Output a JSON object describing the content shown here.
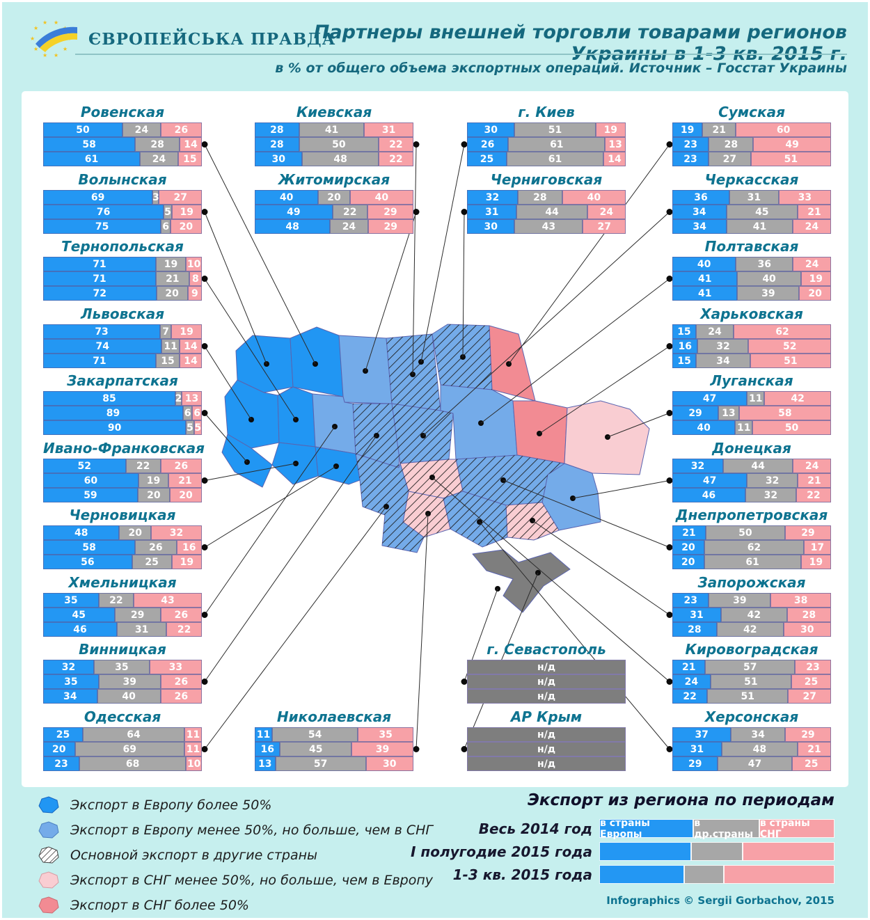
{
  "header": {
    "brand": "ЄВРОПЕЙСЬКА ПРАВДА",
    "title": "Партнеры внешней торговли товарами регионов Украины в 1-3 кв. 2015 г.",
    "subtitle": "в % от общего объема экспортных операций. Источник – Госстат Украины"
  },
  "na_label": "н/д",
  "colors": {
    "bar_europe": "#2397f3",
    "bar_other": "#a7a7a7",
    "bar_cis": "#f7a1a7",
    "bar_na": "#7e7e7e",
    "map_dark_blue": "#2196f3",
    "map_light_blue": "#74abe9",
    "map_pink": "#f28b93",
    "map_light_pink": "#f9cdd2",
    "map_gray": "#7e7e7e",
    "title_teal": "#0e7390",
    "header_teal": "#15687e",
    "background": "#c6efee"
  },
  "chart_data": {
    "type": "bar",
    "title": "Партнеры внешней торговли товарами регионов Украины в 1-3 кв. 2015 г.",
    "unit": "% от общего объема экспортных операций",
    "periods": [
      "Весь 2014 год",
      "I полугодие 2015 года",
      "1-3 кв. 2015 года"
    ],
    "segments": [
      "в страны Европы",
      "в др.страны",
      "в страны СНГ"
    ],
    "regions": [
      {
        "name": "Ровенская",
        "col": "L",
        "row": 0,
        "values": [
          [
            50,
            24,
            26
          ],
          [
            58,
            28,
            14
          ],
          [
            61,
            24,
            15
          ]
        ],
        "map_fill": "dark_blue",
        "map_hatch": false,
        "dot": [
          150,
          95
        ]
      },
      {
        "name": "Волынская",
        "col": "L",
        "row": 1,
        "values": [
          [
            69,
            3,
            27
          ],
          [
            76,
            5,
            19
          ],
          [
            75,
            6,
            20
          ]
        ],
        "map_fill": "dark_blue",
        "map_hatch": false,
        "dot": [
          80,
          95
        ]
      },
      {
        "name": "Тернопольская",
        "col": "L",
        "row": 2,
        "values": [
          [
            71,
            19,
            10
          ],
          [
            71,
            21,
            8
          ],
          [
            72,
            20,
            9
          ]
        ],
        "map_fill": "dark_blue",
        "map_hatch": false,
        "dot": [
          122,
          175
        ]
      },
      {
        "name": "Львовская",
        "col": "L",
        "row": 3,
        "values": [
          [
            73,
            7,
            19
          ],
          [
            74,
            11,
            14
          ],
          [
            71,
            15,
            14
          ]
        ],
        "map_fill": "dark_blue",
        "map_hatch": false,
        "dot": [
          58,
          175
        ]
      },
      {
        "name": "Закарпатская",
        "col": "L",
        "row": 4,
        "values": [
          [
            85,
            2,
            13
          ],
          [
            89,
            6,
            6
          ],
          [
            90,
            5,
            5
          ]
        ],
        "map_fill": "dark_blue",
        "map_hatch": false,
        "dot": [
          52,
          236
        ]
      },
      {
        "name": "Ивано-Франковская",
        "col": "L",
        "row": 5,
        "values": [
          [
            52,
            22,
            26
          ],
          [
            60,
            19,
            21
          ],
          [
            59,
            20,
            20
          ]
        ],
        "map_fill": "dark_blue",
        "map_hatch": false,
        "dot": [
          122,
          238
        ]
      },
      {
        "name": "Черновицкая",
        "col": "L",
        "row": 6,
        "values": [
          [
            48,
            20,
            32
          ],
          [
            58,
            26,
            16
          ],
          [
            56,
            25,
            19
          ]
        ],
        "map_fill": "dark_blue",
        "map_hatch": false,
        "dot": [
          180,
          242
        ]
      },
      {
        "name": "Хмельницкая",
        "col": "L",
        "row": 7,
        "values": [
          [
            35,
            22,
            43
          ],
          [
            45,
            29,
            26
          ],
          [
            46,
            31,
            22
          ]
        ],
        "map_fill": "light_blue",
        "map_hatch": false,
        "dot": [
          178,
          185
        ]
      },
      {
        "name": "Винницкая",
        "col": "L",
        "row": 8,
        "values": [
          [
            32,
            35,
            33
          ],
          [
            35,
            39,
            26
          ],
          [
            34,
            40,
            26
          ]
        ],
        "map_fill": "light_blue",
        "map_hatch": true,
        "dot": [
          238,
          198
        ]
      },
      {
        "name": "Одесская",
        "col": "L",
        "row": 9,
        "values": [
          [
            25,
            64,
            11
          ],
          [
            20,
            69,
            11
          ],
          [
            23,
            68,
            10
          ]
        ],
        "map_fill": "light_blue",
        "map_hatch": true,
        "dot": [
          252,
          300
        ]
      },
      {
        "name": "Киевская",
        "col": "ML",
        "row": 0,
        "values": [
          [
            28,
            41,
            31
          ],
          [
            28,
            50,
            22
          ],
          [
            30,
            48,
            22
          ]
        ],
        "map_fill": "light_blue",
        "map_hatch": true,
        "dot": [
          290,
          110
        ]
      },
      {
        "name": "Житомирская",
        "col": "ML",
        "row": 1,
        "values": [
          [
            40,
            20,
            40
          ],
          [
            49,
            22,
            29
          ],
          [
            48,
            24,
            29
          ]
        ],
        "map_fill": "light_blue",
        "map_hatch": false,
        "dot": [
          222,
          105
        ]
      },
      {
        "name": "Николаевская",
        "col": "ML",
        "row": 9,
        "values": [
          [
            11,
            54,
            35
          ],
          [
            16,
            45,
            39
          ],
          [
            13,
            57,
            30
          ]
        ],
        "map_fill": "light_pink",
        "map_hatch": true,
        "dot": [
          312,
          310
        ]
      },
      {
        "name": "г. Киев",
        "col": "MR",
        "row": 0,
        "values": [
          [
            30,
            51,
            19
          ],
          [
            26,
            61,
            13
          ],
          [
            25,
            61,
            14
          ]
        ],
        "map_fill": "light_blue",
        "map_hatch": true,
        "dot": [
          302,
          92
        ]
      },
      {
        "name": "Черниговская",
        "col": "MR",
        "row": 1,
        "values": [
          [
            32,
            28,
            40
          ],
          [
            31,
            44,
            24
          ],
          [
            30,
            43,
            27
          ]
        ],
        "map_fill": "light_blue",
        "map_hatch": true,
        "dot": [
          362,
          85
        ]
      },
      {
        "name": "г. Севастополь",
        "col": "MR",
        "row": 8,
        "na": true,
        "map_fill": "gray",
        "map_hatch": false,
        "dot": [
          412,
          418
        ]
      },
      {
        "name": "АР Крым",
        "col": "MR",
        "row": 9,
        "na": true,
        "map_fill": "gray",
        "map_hatch": false,
        "dot": [
          470,
          395
        ]
      },
      {
        "name": "Сумская",
        "col": "R",
        "row": 0,
        "values": [
          [
            19,
            21,
            60
          ],
          [
            23,
            28,
            49
          ],
          [
            23,
            27,
            51
          ]
        ],
        "map_fill": "pink",
        "map_hatch": false,
        "dot": [
          428,
          95
        ]
      },
      {
        "name": "Черкасская",
        "col": "R",
        "row": 1,
        "values": [
          [
            36,
            31,
            33
          ],
          [
            34,
            45,
            21
          ],
          [
            34,
            41,
            24
          ]
        ],
        "map_fill": "light_blue",
        "map_hatch": true,
        "dot": [
          305,
          198
        ]
      },
      {
        "name": "Полтавская",
        "col": "R",
        "row": 2,
        "values": [
          [
            40,
            36,
            24
          ],
          [
            41,
            40,
            19
          ],
          [
            41,
            39,
            20
          ]
        ],
        "map_fill": "light_blue",
        "map_hatch": false,
        "dot": [
          388,
          180
        ]
      },
      {
        "name": "Харьковская",
        "col": "R",
        "row": 3,
        "values": [
          [
            15,
            24,
            62
          ],
          [
            16,
            32,
            52
          ],
          [
            15,
            34,
            51
          ]
        ],
        "map_fill": "pink",
        "map_hatch": false,
        "dot": [
          472,
          195
        ]
      },
      {
        "name": "Луганская",
        "col": "R",
        "row": 4,
        "values": [
          [
            47,
            11,
            42
          ],
          [
            29,
            13,
            58
          ],
          [
            40,
            11,
            50
          ]
        ],
        "map_fill": "light_pink",
        "map_hatch": false,
        "dot": [
          570,
          200
        ]
      },
      {
        "name": "Донецкая",
        "col": "R",
        "row": 5,
        "values": [
          [
            32,
            44,
            24
          ],
          [
            47,
            32,
            21
          ],
          [
            46,
            32,
            22
          ]
        ],
        "map_fill": "light_blue",
        "map_hatch": false,
        "dot": [
          520,
          288
        ]
      },
      {
        "name": "Днепропетровская",
        "col": "R",
        "row": 6,
        "values": [
          [
            21,
            50,
            29
          ],
          [
            20,
            62,
            17
          ],
          [
            20,
            61,
            19
          ]
        ],
        "map_fill": "light_blue",
        "map_hatch": true,
        "dot": [
          420,
          262
        ]
      },
      {
        "name": "Запорожская",
        "col": "R",
        "row": 7,
        "values": [
          [
            23,
            39,
            38
          ],
          [
            31,
            42,
            28
          ],
          [
            28,
            42,
            30
          ]
        ],
        "map_fill": "light_pink",
        "map_hatch": true,
        "dot": [
          462,
          320
        ]
      },
      {
        "name": "Кировоградская",
        "col": "R",
        "row": 8,
        "values": [
          [
            21,
            57,
            23
          ],
          [
            24,
            51,
            25
          ],
          [
            22,
            51,
            27
          ]
        ],
        "map_fill": "light_pink",
        "map_hatch": true,
        "dot": [
          318,
          258
        ]
      },
      {
        "name": "Херсонская",
        "col": "R",
        "row": 9,
        "values": [
          [
            37,
            34,
            29
          ],
          [
            31,
            48,
            21
          ],
          [
            29,
            47,
            25
          ]
        ],
        "map_fill": "light_blue",
        "map_hatch": true,
        "dot": [
          386,
          322
        ]
      }
    ]
  },
  "map_legend": [
    {
      "icon": "dark_blue",
      "label": "Экспорт в Европу более 50%"
    },
    {
      "icon": "light_blue",
      "label": "Экспорт в Европу менее 50%, но больше, чем в СНГ"
    },
    {
      "icon": "hatch",
      "label": "Основной экспорт в другие страны"
    },
    {
      "icon": "light_pink",
      "label": "Экспорт в СНГ менее 50%, но больше, чем в Европу"
    },
    {
      "icon": "pink",
      "label": "Экспорт в СНГ более 50%"
    }
  ],
  "period_legend": {
    "title": "Экспорт из региона по периодам",
    "segment_labels": [
      "в страны Европы",
      "в др.страны",
      "в страны СНГ"
    ],
    "rows": [
      {
        "label": "Весь 2014 год",
        "values": [
          40,
          28,
          32
        ],
        "labeled": true
      },
      {
        "label": "I полугодие 2015 года",
        "values": [
          39,
          22,
          39
        ],
        "labeled": false
      },
      {
        "label": "1-3 кв. 2015 года",
        "values": [
          36,
          17,
          47
        ],
        "labeled": false
      }
    ]
  },
  "credit": "Infographics © Sergii Gorbachov, 2015"
}
